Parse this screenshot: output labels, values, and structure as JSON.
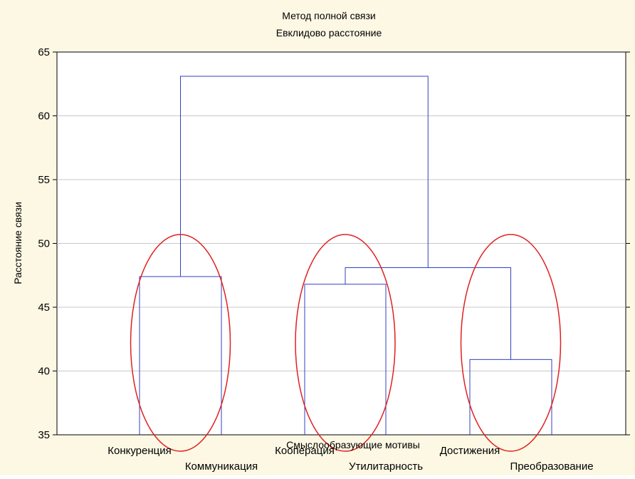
{
  "chart_data": {
    "type": "dendrogram",
    "title": "Метод полной связи",
    "subtitle": "Евклидово расстояние",
    "xlabel": "Смыслообразующие мотивы",
    "ylabel": "Расстояние связи",
    "ylim": [
      35,
      65
    ],
    "yticks": [
      35,
      40,
      45,
      50,
      55,
      60,
      65
    ],
    "grid": true,
    "leaves": [
      "Конкуренция",
      "Коммуникация",
      "Кооперация",
      "Утилитарность",
      "Достижения",
      "Преобразование"
    ],
    "merges": [
      {
        "id": "A",
        "left": "Конкуренция",
        "right": "Коммуникация",
        "height": 47.4
      },
      {
        "id": "B",
        "left": "Кооперация",
        "right": "Утилитарность",
        "height": 46.8
      },
      {
        "id": "C",
        "left": "Достижения",
        "right": "Преобразование",
        "height": 40.9
      },
      {
        "id": "D",
        "left": "B",
        "right": "C",
        "height": 48.1
      },
      {
        "id": "E",
        "left": "A",
        "right": "D",
        "height": 63.1
      }
    ],
    "highlighted_groups": [
      [
        "Конкуренция",
        "Коммуникация"
      ],
      [
        "Кооперация",
        "Утилитарность"
      ],
      [
        "Достижения",
        "Преобразование"
      ]
    ],
    "colors": {
      "background": "#fdf8e4",
      "plot_area": "#ffffff",
      "lines": "#3040c0",
      "highlight": "#e02020",
      "grid": "#c8c8c8"
    }
  }
}
